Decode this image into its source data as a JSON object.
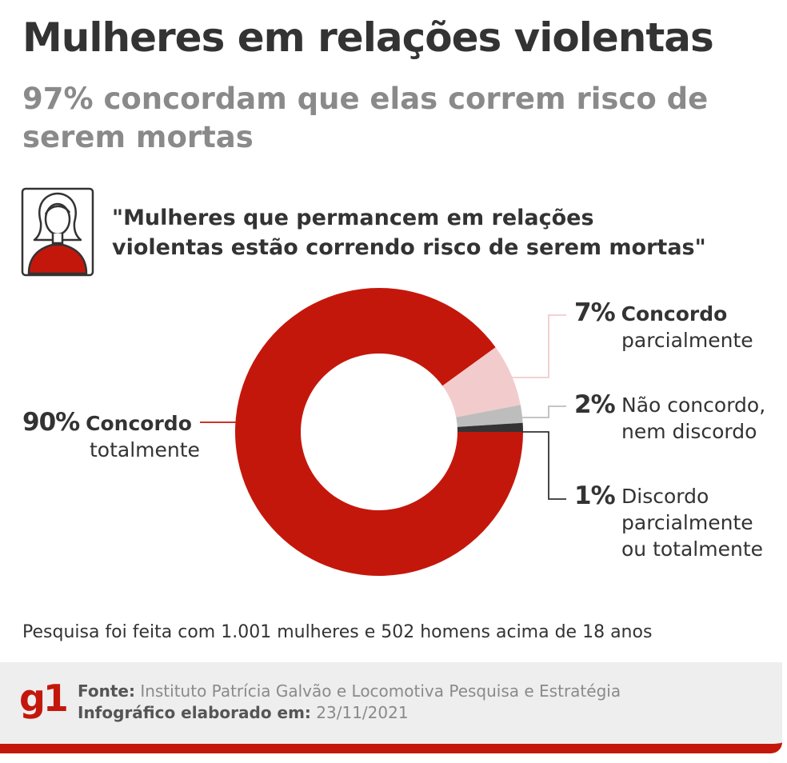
{
  "title": "Mulheres em relações violentas",
  "subtitle": "97% concordam que elas correm risco de serem mortas",
  "quote": "\"Mulheres que permancem em relações\nviolentas estão correndo risco de serem mortas\"",
  "chart_data": {
    "type": "pie",
    "style": "donut",
    "slices": [
      {
        "pct_label": "90%",
        "label_bold": "Concordo",
        "label_rest": "totalmente",
        "value": 90,
        "color": "#c4170c"
      },
      {
        "pct_label": "7%",
        "label_bold": "Concordo",
        "label_rest": "parcialmente",
        "value": 7,
        "color": "#f2cccc"
      },
      {
        "pct_label": "2%",
        "label_bold": "",
        "label_rest": "Não concordo, nem discordo",
        "value": 2,
        "color": "#bdbdbd"
      },
      {
        "pct_label": "1%",
        "label_bold": "",
        "label_rest": "Discordo parcialmente ou totalmente",
        "value": 1,
        "color": "#333333"
      }
    ]
  },
  "note": "Pesquisa foi feita com 1.001 mulheres e 502 homens acima de 18 anos",
  "footer": {
    "logo": "g1",
    "source_label": "Fonte:",
    "source_value": "Instituto Patrícia Galvão e Locomotiva Pesquisa e Estratégia",
    "date_label": "Infográfico elaborado em:",
    "date_value": "23/11/2021"
  },
  "icon": "woman-icon"
}
